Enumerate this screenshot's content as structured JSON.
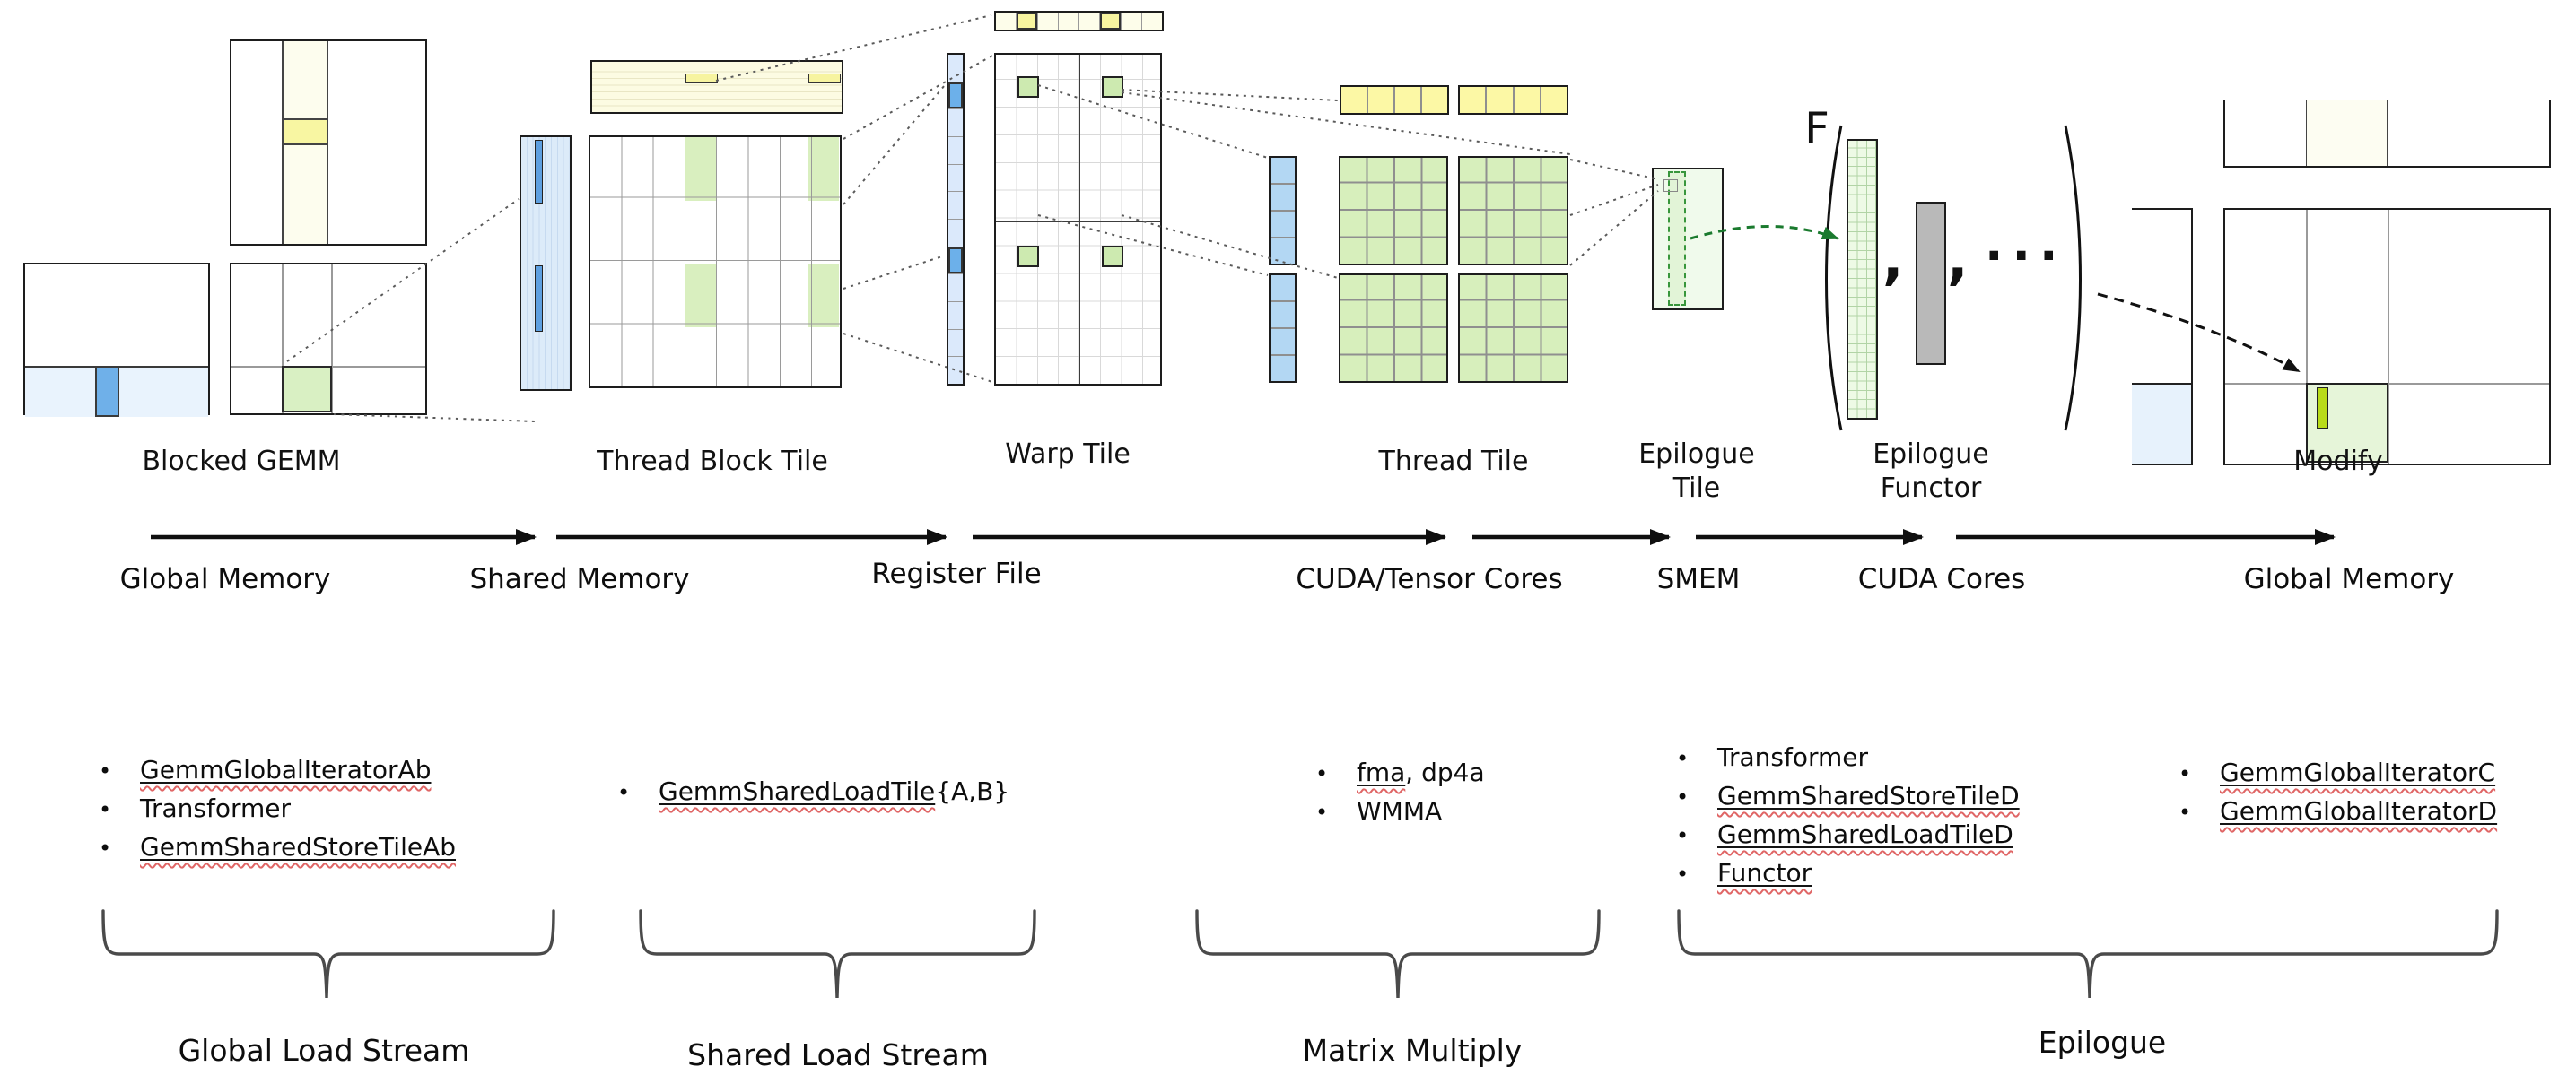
{
  "stage_labels": {
    "blocked_gemm": "Blocked GEMM",
    "thread_block_tile": "Thread Block Tile",
    "warp_tile": "Warp Tile",
    "thread_tile": "Thread Tile",
    "epilogue_tile_line1": "Epilogue",
    "epilogue_tile_line2": "Tile",
    "epilogue_functor_line1": "Epilogue",
    "epilogue_functor_line2": "Functor",
    "modify": "Modify"
  },
  "memory_flow_labels": [
    "Global Memory",
    "Shared Memory",
    "Register File",
    "CUDA/Tensor Cores",
    "SMEM",
    "CUDA Cores",
    "Global Memory"
  ],
  "epilogue_functor": {
    "function_symbol": "F",
    "separator_1": ",",
    "separator_2": ",",
    "ellipsis": "..."
  },
  "component_lists": {
    "global_load": {
      "items": [
        {
          "linked": "GemmGlobalIteratorAb",
          "plain": ""
        },
        {
          "linked": "",
          "plain": "Transformer"
        },
        {
          "linked": "GemmSharedStoreTileAb",
          "plain": ""
        }
      ]
    },
    "shared_load": {
      "items": [
        {
          "linked": "GemmSharedLoadTile",
          "plain": "{A,B}"
        }
      ]
    },
    "matrix_multiply": {
      "items": [
        {
          "linked": "fma",
          "plain": ", dp4a"
        },
        {
          "linked": "",
          "plain": "WMMA"
        }
      ]
    },
    "epilogue": {
      "items": [
        {
          "linked": "",
          "plain": "Transformer"
        },
        {
          "linked": "GemmSharedStoreTileD",
          "plain": ""
        },
        {
          "linked": "GemmSharedLoadTileD",
          "plain": ""
        },
        {
          "linked": "Functor",
          "plain": ""
        }
      ]
    },
    "global_store": {
      "items": [
        {
          "linked": "GemmGlobalIteratorC",
          "plain": ""
        },
        {
          "linked": "GemmGlobalIteratorD",
          "plain": ""
        }
      ]
    }
  },
  "stream_labels": {
    "global_load_stream": "Global Load Stream",
    "shared_load_stream": "Shared Load Stream",
    "matrix_multiply": "Matrix Multiply",
    "epilogue": "Epilogue"
  },
  "colors": {
    "operand_blue_highlight": "#6fb0e9",
    "operand_blue_light": "#dcebf9",
    "operand_yellow_highlight": "#f8f6a2",
    "operand_yellow_light": "#fdfdeb",
    "accumulator_green": "#d7efbc",
    "accumulator_green_cell": "#cdeab0",
    "epilogue_bar_chartreuse": "#b9db19",
    "functor_operand_gray": "#b9b9b9",
    "dashed_arrow_green": "#1a7a2e",
    "spellcheck_squiggle_red": "#e06666"
  }
}
